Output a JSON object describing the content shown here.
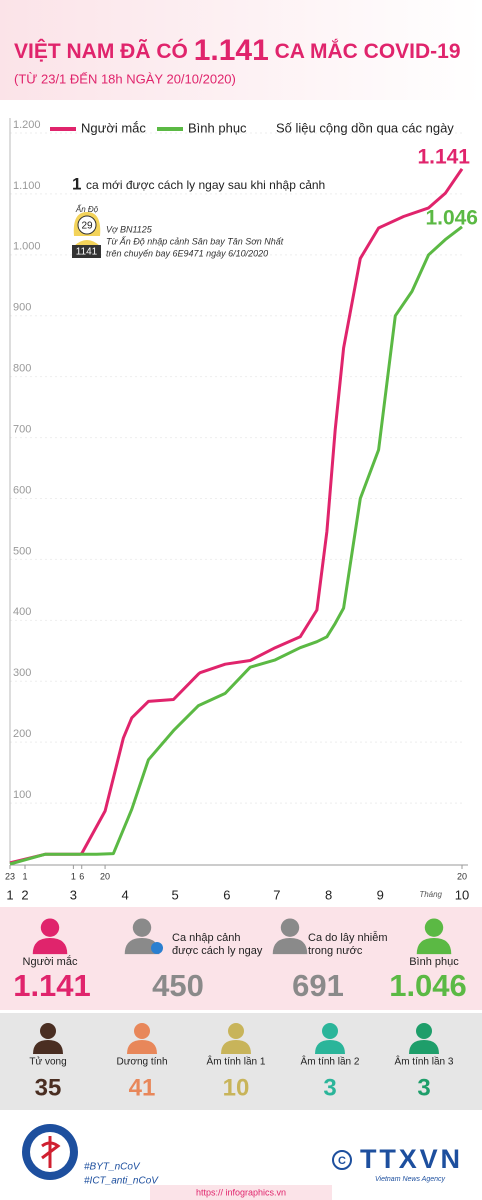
{
  "header": {
    "title_pre": "VIỆT NAM ĐÃ CÓ",
    "title_num": "1.141",
    "title_post": "CA MẮC COVID-19",
    "subtitle": "(TỪ 23/1 ĐẾN 18h NGÀY 20/10/2020)"
  },
  "chart_data": {
    "type": "line",
    "legend_note": "Số liệu cộng dồn qua các ngày",
    "x_label": "Tháng",
    "xlim": [
      "01-23",
      "10-20"
    ],
    "xticks": [
      {
        "value": "01-23",
        "label": "23"
      },
      {
        "value": "02-01",
        "label": "1"
      },
      {
        "value": "03-01",
        "label": "1"
      },
      {
        "value": "03-06",
        "label": "6"
      },
      {
        "value": "03-20",
        "label": "20"
      },
      {
        "value": "10-20",
        "label": "20"
      }
    ],
    "month_ticks": [
      {
        "value": "01-23",
        "label": "1"
      },
      {
        "value": "02-01",
        "label": "2"
      },
      {
        "value": "03-01",
        "label": "3"
      },
      {
        "value": "04-01",
        "label": "4"
      },
      {
        "value": "05-01",
        "label": "5"
      },
      {
        "value": "06-01",
        "label": "6"
      },
      {
        "value": "07-01",
        "label": "7"
      },
      {
        "value": "08-01",
        "label": "8"
      },
      {
        "value": "09-01",
        "label": "9"
      },
      {
        "value": "10-20",
        "label": "10"
      }
    ],
    "ylim": [
      0,
      1200
    ],
    "yticks": [
      100,
      200,
      300,
      400,
      500,
      600,
      700,
      800,
      900,
      {
        "value": 1000,
        "label": "1.000"
      },
      {
        "value": 1100,
        "label": "1.100"
      },
      {
        "value": 1200,
        "label": "1.200"
      }
    ],
    "grid": true,
    "series": [
      {
        "name": "Người mắc",
        "color": "#e0246c",
        "end_label": "1.141",
        "x": [
          "01-23",
          "02-13",
          "03-05",
          "03-06",
          "03-20",
          "03-31",
          "04-05",
          "04-15",
          "04-30",
          "05-15",
          "05-16",
          "05-31",
          "06-15",
          "06-30",
          "07-15",
          "07-25",
          "07-31",
          "08-05",
          "08-10",
          "08-20",
          "08-31",
          "09-15",
          "09-30",
          "10-10",
          "10-20"
        ],
        "values": [
          2,
          16,
          16,
          17,
          87,
          207,
          240,
          267,
          270,
          312,
          314,
          328,
          334,
          355,
          373,
          417,
          546,
          713,
          847,
          994,
          1044,
          1063,
          1077,
          1101,
          1141
        ]
      },
      {
        "name": "Bình phục",
        "color": "#5bb944",
        "end_label": "1.046",
        "x": [
          "01-23",
          "02-13",
          "03-15",
          "03-25",
          "04-05",
          "04-15",
          "04-30",
          "05-15",
          "05-31",
          "06-15",
          "06-30",
          "07-15",
          "07-25",
          "07-31",
          "08-05",
          "08-10",
          "08-20",
          "08-31",
          "09-10",
          "09-20",
          "09-30",
          "10-10",
          "10-20"
        ],
        "values": [
          0,
          16,
          16,
          17,
          90,
          171,
          219,
          260,
          280,
          323,
          335,
          355,
          365,
          373,
          395,
          420,
          600,
          680,
          900,
          940,
          1000,
          1025,
          1046
        ]
      }
    ],
    "annotation": {
      "count": "1",
      "text": "ca mới được cách ly ngay sau khi nhập cảnh",
      "country": "Ấn Độ",
      "age": "29",
      "case_id": "1141",
      "lines": [
        "Vợ BN1125",
        "Từ Ấn Độ nhập cảnh Sân bay Tân Sơn Nhất",
        "trên chuyến bay 6E9471 ngày 6/10/2020"
      ]
    }
  },
  "stats_top": [
    {
      "label_lines": [
        "Người mắc"
      ],
      "value": "1.141"
    },
    {
      "label_lines": [
        "Ca nhập cảnh",
        "được cách ly ngay"
      ],
      "value": "450"
    },
    {
      "label_lines": [
        "Ca do lây nhiễm",
        "trong nước"
      ],
      "value": "691"
    },
    {
      "label_lines": [
        "Bình phục"
      ],
      "value": "1.046"
    }
  ],
  "stats_bottom": [
    {
      "label": "Tử vong",
      "value": "35"
    },
    {
      "label": "Dương tính",
      "value": "41"
    },
    {
      "label": "Âm tính lần 1",
      "value": "10"
    },
    {
      "label": "Âm tính lần 2",
      "value": "3"
    },
    {
      "label": "Âm tính lần 3",
      "value": "3"
    }
  ],
  "footer": {
    "tags": [
      "#BYT_nCoV",
      "#ICT_anti_nCoV"
    ],
    "brand": "TTXVN",
    "brand_sub": "Vietnam News Agency",
    "url": "https:// infographics.vn"
  }
}
